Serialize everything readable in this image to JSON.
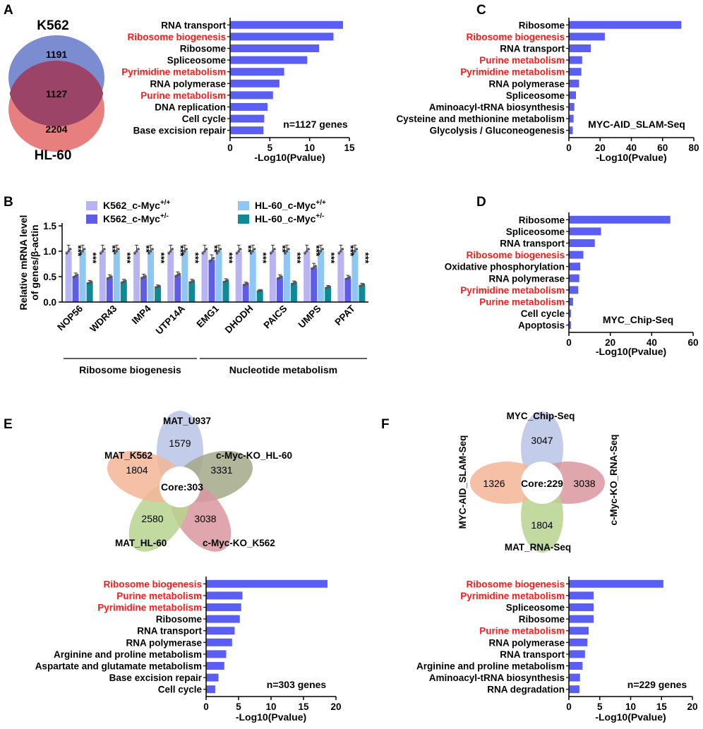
{
  "colors": {
    "bar": "#5b5ef2",
    "highlight": "#ff1a1a",
    "k562_wt": "#b8b4f4",
    "k562_het": "#5f5ce6",
    "hl60_wt": "#8ec6f4",
    "hl60_het": "#0f8a94",
    "venn_blue": "#6d7fcc",
    "venn_red": "#e36969",
    "venn_overlap": "#9c4468"
  },
  "panels": {
    "A": {
      "label": "A",
      "venn": {
        "top_label": "K562",
        "bottom_label": "HL-60",
        "k562_only": "1191",
        "overlap": "1127",
        "hl60_only": "2204"
      }
    },
    "B": {
      "label": "B"
    },
    "C": {
      "label": "C"
    },
    "D": {
      "label": "D"
    },
    "E": {
      "label": "E",
      "flower": {
        "core": "Core:303",
        "petals": [
          {
            "name": "MAT_U937",
            "value": "1579"
          },
          {
            "name": "c-Myc-KO_HL-60",
            "value": "3331"
          },
          {
            "name": "c-Myc-KO_K562",
            "value": "3038"
          },
          {
            "name": "MAT_HL-60",
            "value": "2580"
          },
          {
            "name": "MAT_K562",
            "value": "1804"
          }
        ]
      }
    },
    "F": {
      "label": "F",
      "flower": {
        "core": "Core:229",
        "petals": [
          {
            "name": "MYC_Chip-Seq",
            "value": "3047"
          },
          {
            "name": "c-Myc-KO_RNA-Seq",
            "value": "3038"
          },
          {
            "name": "MAT_RNA-Seq",
            "value": "1804"
          },
          {
            "name": "MYC-AID_SLAM-Seq",
            "value": "1326"
          }
        ]
      }
    }
  },
  "chart_data": [
    {
      "panel": "A",
      "type": "bar",
      "orientation": "horizontal",
      "categories": [
        "RNA transport",
        "Ribosome biogenesis",
        "Ribosome",
        "Spliceosome",
        "Pyrimidine metabolism",
        "RNA polymerase",
        "Purine metabolism",
        "DNA replication",
        "Cell cycle",
        "Base excision repair"
      ],
      "values": [
        14.2,
        13.0,
        11.2,
        9.7,
        6.8,
        6.2,
        5.4,
        4.7,
        4.3,
        4.2
      ],
      "highlight": [
        false,
        true,
        false,
        false,
        true,
        false,
        true,
        false,
        false,
        false
      ],
      "xlabel": "-Log10(Pvalue)",
      "xlim": [
        0,
        15
      ],
      "xticks": [
        0,
        5,
        10,
        15
      ],
      "annotation": "n=1127 genes"
    },
    {
      "panel": "C",
      "type": "bar",
      "orientation": "horizontal",
      "categories": [
        "Ribosome",
        "Ribosome biogenesis",
        "RNA transport",
        "Purine metabolism",
        "Pyrimidine metabolism",
        "RNA polymerase",
        "Spliceosome",
        "Aminoacyl-tRNA biosynthesis",
        "Cysteine and methionine metabolism",
        "Glycolysis / Gluconeogenesis"
      ],
      "values": [
        72,
        23,
        14,
        8.5,
        8,
        6.5,
        4.5,
        3.5,
        3,
        2.5
      ],
      "highlight": [
        false,
        true,
        false,
        true,
        true,
        false,
        false,
        false,
        false,
        false
      ],
      "xlabel": "-Log10(Pvalue)",
      "xlim": [
        0,
        80
      ],
      "xticks": [
        0,
        20,
        40,
        60,
        80
      ],
      "annotation": "MYC-AID_SLAM-Seq"
    },
    {
      "panel": "D",
      "type": "bar",
      "orientation": "horizontal",
      "categories": [
        "Ribosome",
        "Spliceosome",
        "RNA transport",
        "Ribosome biogenesis",
        "Oxidative phosphorylation",
        "RNA polymerase",
        "Pyrimidine metabolism",
        "Purine metabolism",
        "Cell cycle",
        "Apoptosis"
      ],
      "values": [
        49,
        15.5,
        12.5,
        7,
        5.5,
        5,
        4.5,
        2,
        1,
        1
      ],
      "highlight": [
        false,
        false,
        false,
        true,
        false,
        false,
        true,
        true,
        false,
        false
      ],
      "xlabel": "-Log10(Pvalue)",
      "xlim": [
        0,
        60
      ],
      "xticks": [
        0,
        20,
        40,
        60
      ],
      "annotation": "MYC_Chip-Seq"
    },
    {
      "panel": "E",
      "type": "bar",
      "orientation": "horizontal",
      "categories": [
        "Ribosome biogenesis",
        "Purine metabolism",
        "Pyrimidine metabolism",
        "Ribosome",
        "RNA transport",
        "RNA polymerase",
        "Arginine and proline metabolism",
        "Aspartate and glutamate metabolism",
        "Base excision repair",
        "Cell cycle"
      ],
      "values": [
        18.7,
        5.6,
        5.4,
        5.2,
        4.4,
        4,
        3.1,
        2.8,
        1.9,
        1.4
      ],
      "highlight": [
        true,
        true,
        true,
        false,
        false,
        false,
        false,
        false,
        false,
        false
      ],
      "xlabel": "-Log10(Pvalue)",
      "xlim": [
        0,
        20
      ],
      "xticks": [
        0,
        5,
        10,
        15,
        20
      ],
      "annotation": "n=303 genes"
    },
    {
      "panel": "F",
      "type": "bar",
      "orientation": "horizontal",
      "categories": [
        "Ribosome biogenesis",
        "Pyrimidine metabolism",
        "Spliceosome",
        "Ribosome",
        "Purine metabolism",
        "RNA polymerase",
        "RNA transport",
        "Arginine and proline metabolism",
        "Aminoacyl-tRNA biosynthesis",
        "RNA degradation"
      ],
      "values": [
        15.3,
        4,
        4,
        4,
        3.2,
        3,
        2.6,
        2.2,
        1.8,
        1.7
      ],
      "highlight": [
        true,
        true,
        false,
        false,
        true,
        false,
        false,
        false,
        false,
        false
      ],
      "xlabel": "-Log10(Pvalue)",
      "xlim": [
        0,
        20
      ],
      "xticks": [
        0,
        5,
        10,
        15,
        20
      ],
      "annotation": "n=229 genes"
    },
    {
      "panel": "B",
      "type": "bar",
      "orientation": "vertical",
      "ylabel_lines": [
        "Relative mRNA level",
        "of genes/β-actin"
      ],
      "ylim": [
        0,
        1.5
      ],
      "yticks": [
        "0.0",
        "0.5",
        "1.0",
        "1.5"
      ],
      "legend": [
        {
          "base": "K562_c-Myc",
          "sup": "+/+"
        },
        {
          "base": "K562_c-Myc",
          "sup": "+/-"
        },
        {
          "base": "HL-60_c-Myc",
          "sup": "+/+"
        },
        {
          "base": "HL-60_c-Myc",
          "sup": "+/-"
        }
      ],
      "categories": [
        "NOP56",
        "WDR43",
        "IMP4",
        "UTP14A",
        "EMG1",
        "DHODH",
        "PAICS",
        "UMPS",
        "PPAT"
      ],
      "series": [
        {
          "name": "K562_c-Myc+/+",
          "values": [
            1,
            1,
            1,
            1,
            1,
            1,
            1,
            1,
            1
          ]
        },
        {
          "name": "K562_c-Myc+/-",
          "values": [
            0.51,
            0.48,
            0.49,
            0.53,
            0.83,
            0.35,
            0.48,
            0.68,
            0.47
          ]
        },
        {
          "name": "HL-60_c-Myc+/+",
          "values": [
            1,
            1,
            1,
            1,
            1,
            1,
            1,
            1,
            1
          ]
        },
        {
          "name": "HL-60_c-Myc+/-",
          "values": [
            0.38,
            0.4,
            0.3,
            0.4,
            0.41,
            0.22,
            0.37,
            0.29,
            0.33
          ]
        }
      ],
      "sig_k562": [
        "***",
        "**",
        "**",
        "***",
        "**",
        "**",
        "**",
        "***",
        "***"
      ],
      "sig_hl60": [
        "***",
        "***",
        "***",
        "***",
        "***",
        "***",
        "***",
        "***",
        "***"
      ],
      "groups": [
        {
          "name": "Ribosome biogenesis",
          "from": 0,
          "to": 3
        },
        {
          "name": "Nucleotide metabolism",
          "from": 4,
          "to": 8
        }
      ]
    }
  ]
}
